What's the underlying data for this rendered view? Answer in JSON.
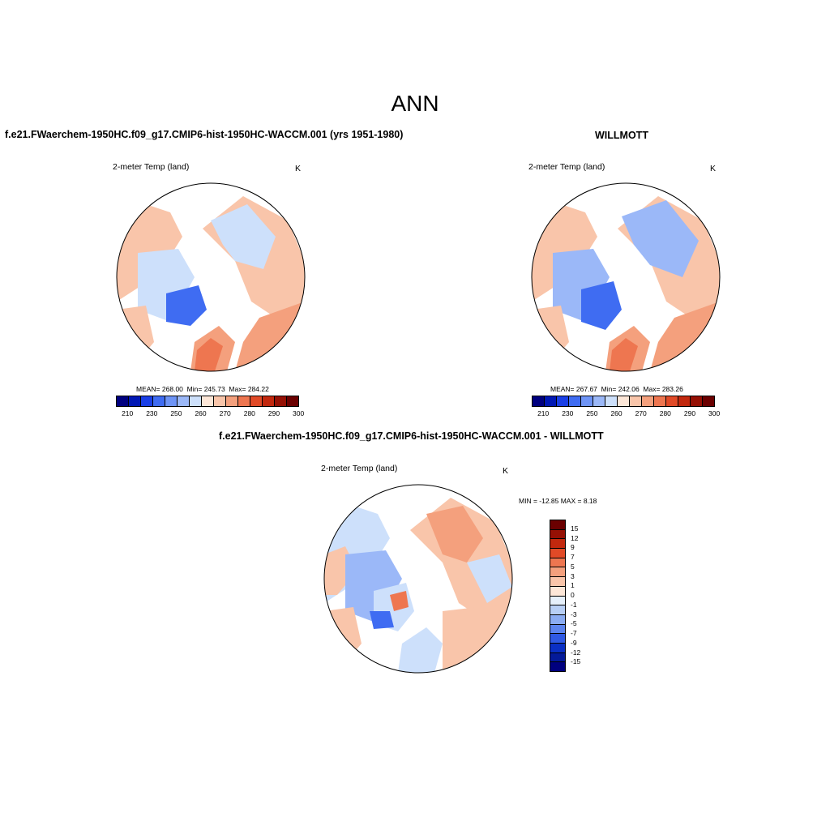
{
  "main_title": "ANN",
  "panels": [
    {
      "title": "f.e21.FWaerchem-1950HC.f09_g17.CMIP6-hist-1950HC-WACCM.001 (yrs 1951-1980)",
      "variable": "2-meter Temp (land)",
      "units": "K",
      "stats": {
        "mean": "268.00",
        "min": "245.73",
        "max": "284.22"
      }
    },
    {
      "title": "WILLMOTT",
      "variable": "2-meter Temp (land)",
      "units": "K",
      "stats": {
        "mean": "267.67",
        "min": "242.06",
        "max": "283.26"
      }
    },
    {
      "title": "f.e21.FWaerchem-1950HC.f09_g17.CMIP6-hist-1950HC-WACCM.001 - WILLMOTT",
      "variable": "2-meter Temp (land)",
      "units": "K",
      "minmax": "MIN = -12.85 MAX =   8.18"
    }
  ],
  "labels": {
    "mean": "MEAN=",
    "min": "Min=",
    "max": "Max="
  },
  "colorbar_abs": {
    "ticks": [
      "210",
      "230",
      "250",
      "260",
      "270",
      "280",
      "290",
      "300"
    ],
    "colors": [
      "#00007f",
      "#0018b4",
      "#1a3fe6",
      "#3f6cf2",
      "#6e94f6",
      "#9bb8f8",
      "#cde0fb",
      "#fde7d8",
      "#f9c5aa",
      "#f4a07d",
      "#ee7650",
      "#e14a27",
      "#c2280e",
      "#951004",
      "#6b0000"
    ]
  },
  "colorbar_diff": {
    "ticks": [
      "15",
      "12",
      "9",
      "7",
      "5",
      "3",
      "1",
      "0",
      "-1",
      "-3",
      "-5",
      "-7",
      "-9",
      "-12",
      "-15"
    ],
    "colors": [
      "#6b0000",
      "#951004",
      "#c2280e",
      "#e14a27",
      "#ee7650",
      "#f4a07d",
      "#f9c5aa",
      "#fde7d8",
      "#e6f0fb",
      "#b8cff5",
      "#8bacf2",
      "#5c84ee",
      "#2f59e3",
      "#0a2fc4",
      "#041a99",
      "#00007f"
    ]
  },
  "map_colors": {
    "warm_light": "#f9c5aa",
    "warm_mid": "#f4a07d",
    "warm_strong": "#ee7650",
    "cool_light": "#cde0fb",
    "cool_mid": "#8bacf2",
    "cool_strong": "#3f6cf2"
  }
}
